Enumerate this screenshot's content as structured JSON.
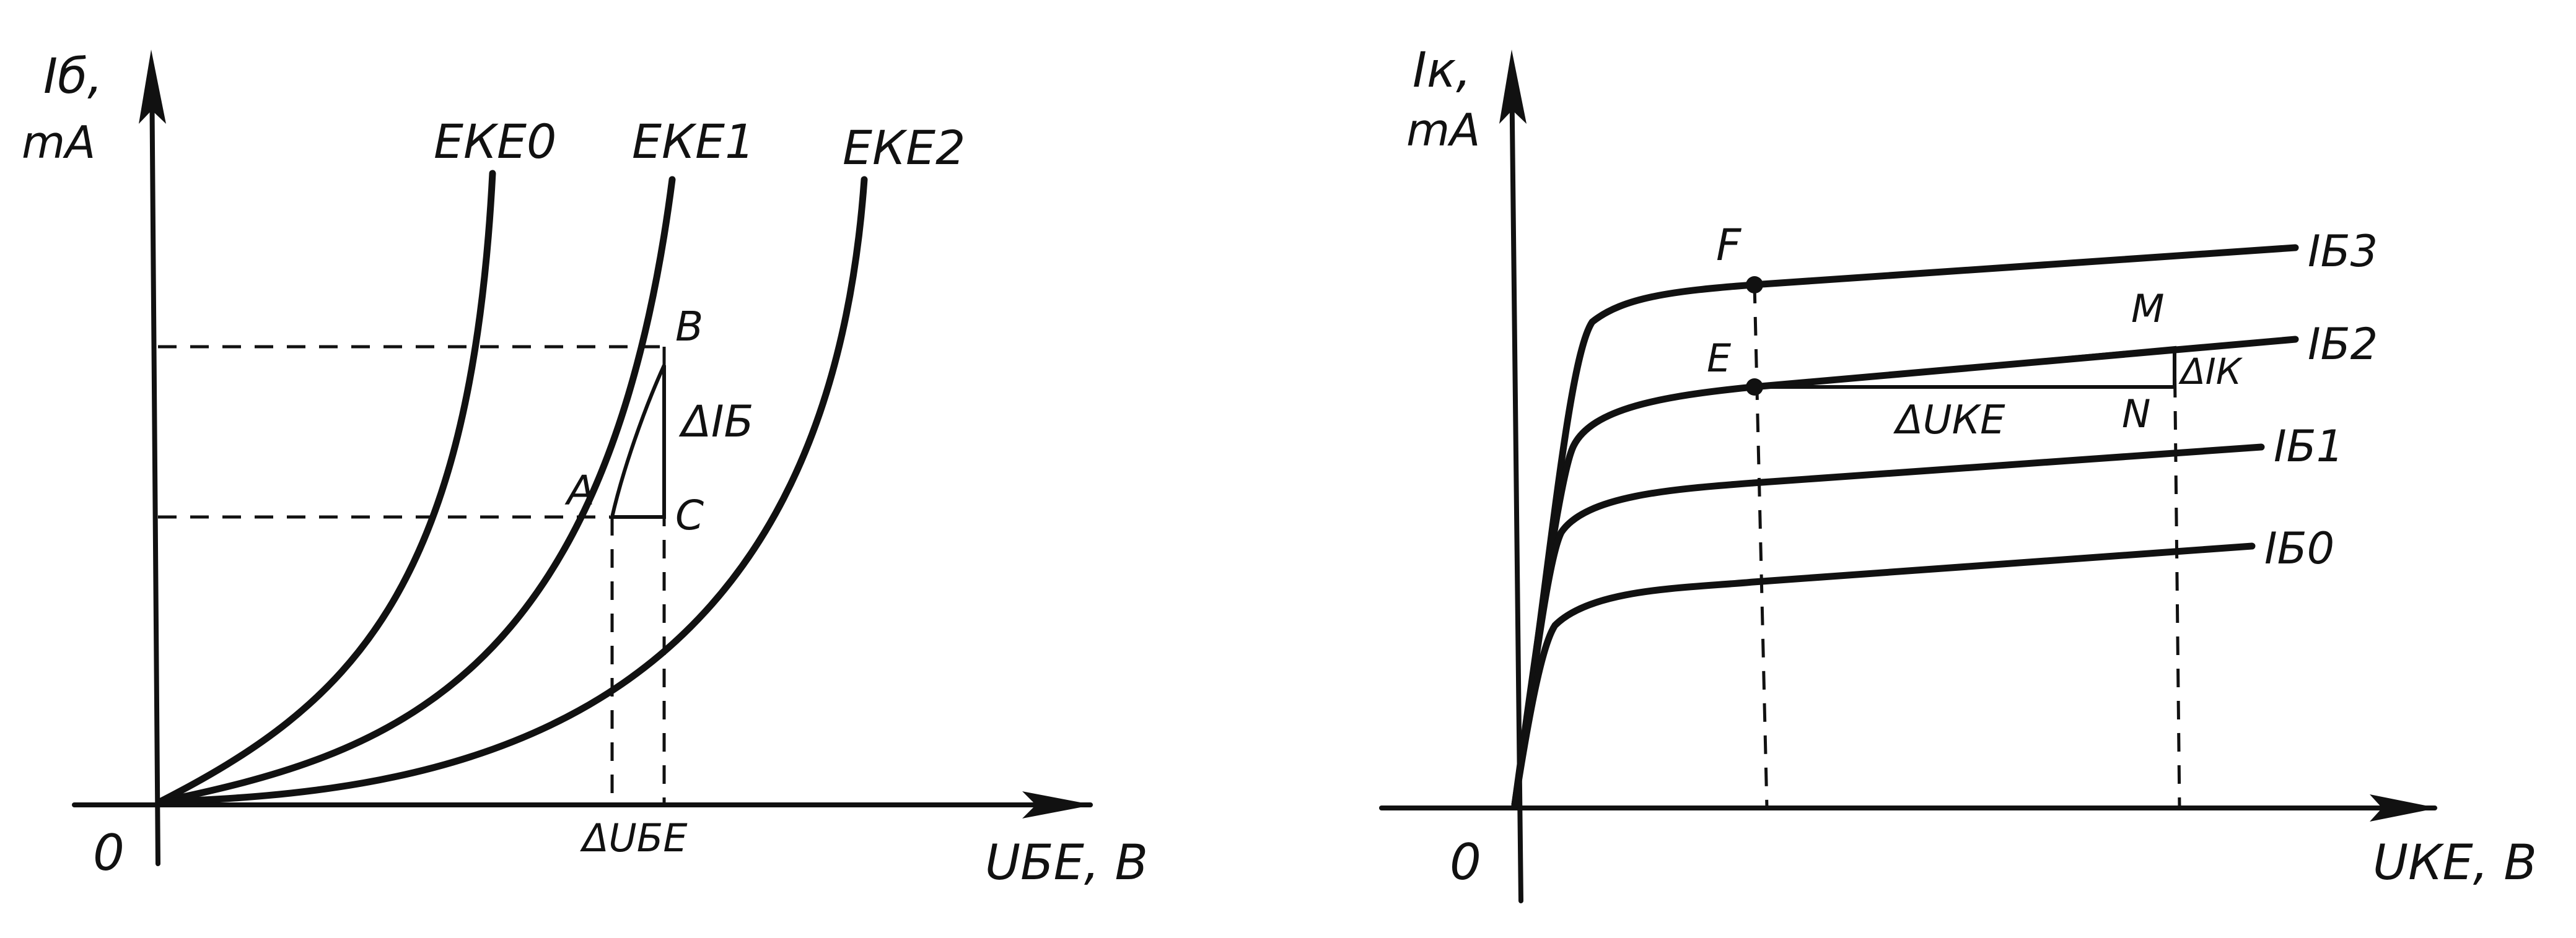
{
  "left_plot": {
    "y_axis_label": "Iб,",
    "y_axis_unit": "mA",
    "x_axis_label": "UБЕ, B",
    "origin_label": "0",
    "curve_labels": [
      "EКЕ0",
      "EКЕ1",
      "EКЕ2"
    ],
    "point_labels": {
      "a": "A",
      "b": "B",
      "c": "C"
    },
    "delta_y_label": "ΔIБ",
    "delta_x_label": "ΔUБЕ"
  },
  "right_plot": {
    "y_axis_label": "Iк,",
    "y_axis_unit": "mA",
    "x_axis_label": "UКЕ, B",
    "origin_label": "0",
    "curve_labels": [
      "IБ3",
      "IБ2",
      "IБ1",
      "IБ0"
    ],
    "point_labels": {
      "f": "F",
      "e": "E",
      "m": "M",
      "n": "N"
    },
    "delta_y_label": "ΔIК",
    "delta_x_label": "ΔUКЕ"
  },
  "colors": {
    "ink": "#111111",
    "paper": "#ffffff"
  }
}
